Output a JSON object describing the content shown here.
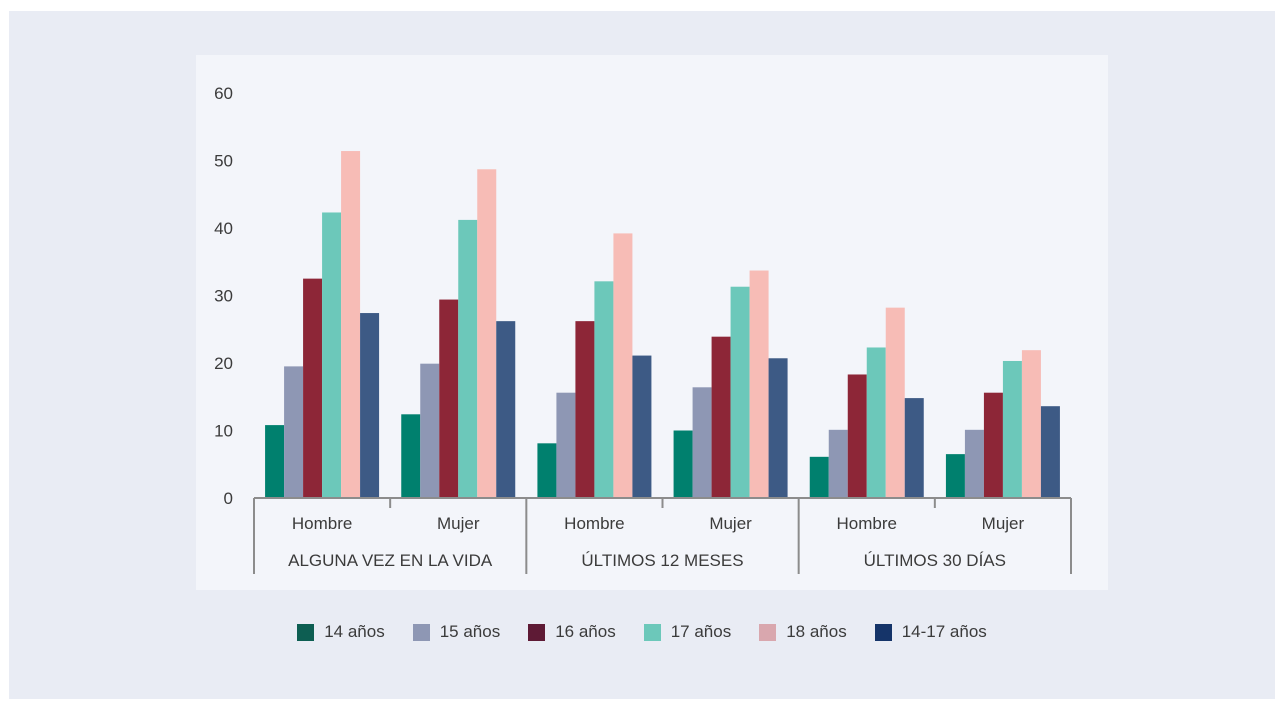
{
  "chart_data": {
    "type": "bar",
    "ylim": [
      0,
      60
    ],
    "yticks": [
      0,
      10,
      20,
      30,
      40,
      50,
      60
    ],
    "groups": [
      {
        "label": "ALGUNA VEZ EN LA VIDA",
        "categories": [
          "Hombre",
          "Mujer"
        ]
      },
      {
        "label": "ÚLTIMOS 12 MESES",
        "categories": [
          "Hombre",
          "Mujer"
        ]
      },
      {
        "label": "ÚLTIMOS 30 DÍAS",
        "categories": [
          "Hombre",
          "Mujer"
        ]
      }
    ],
    "categories": [
      "Hombre",
      "Mujer",
      "Hombre",
      "Mujer",
      "Hombre",
      "Mujer"
    ],
    "series": [
      {
        "name": "14 años",
        "color": "#00806e",
        "legend_color": "#0d5e52",
        "values": [
          10.8,
          12.4,
          8.1,
          10.0,
          6.1,
          6.5
        ]
      },
      {
        "name": "15 años",
        "color": "#8e97b4",
        "legend_color": "#8e97b4",
        "values": [
          19.5,
          19.9,
          15.6,
          16.4,
          10.1,
          10.1
        ]
      },
      {
        "name": "16 años",
        "color": "#8d2637",
        "legend_color": "#5e1a35",
        "values": [
          32.5,
          29.4,
          26.2,
          23.9,
          18.3,
          15.6
        ]
      },
      {
        "name": "17 años",
        "color": "#6cc8ba",
        "legend_color": "#6cc8ba",
        "values": [
          42.3,
          41.2,
          32.1,
          31.3,
          22.3,
          20.3
        ]
      },
      {
        "name": "18 años",
        "color": "#f7bcb6",
        "legend_color": "#d9a7ae",
        "values": [
          51.4,
          48.7,
          39.2,
          33.7,
          28.2,
          21.9
        ]
      },
      {
        "name": "14-17 años",
        "color": "#3d5a85",
        "legend_color": "#153469",
        "values": [
          27.4,
          26.2,
          21.1,
          20.7,
          14.8,
          13.6
        ]
      }
    ],
    "legend_position": "bottom",
    "grid": false
  }
}
